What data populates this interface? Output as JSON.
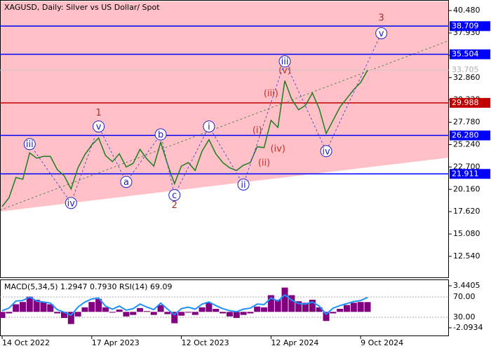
{
  "chart_data": [
    {
      "type": "line",
      "title": "XAGUSD, Daily:  Silver vs US Dollar/ Spot",
      "color": "#1e7d1e",
      "categories": [
        "14 Oct 2022",
        null,
        null,
        null,
        null,
        null,
        null,
        null,
        null,
        null,
        null,
        null,
        null,
        "17 Apr 2023",
        null,
        null,
        null,
        null,
        null,
        null,
        null,
        null,
        null,
        null,
        null,
        null,
        "12 Oct 2023",
        null,
        null,
        null,
        null,
        null,
        null,
        null,
        null,
        null,
        null,
        null,
        null,
        "12 Apr 2024",
        null,
        null,
        null,
        null,
        null,
        null,
        null,
        null,
        null,
        null,
        null,
        null,
        "9 Oct 2024",
        null
      ],
      "values": [
        18.2,
        19.2,
        21.5,
        21.3,
        24.3,
        23.7,
        23.9,
        23.9,
        22.4,
        21.7,
        20.2,
        22.6,
        24.1,
        25.2,
        26.0,
        24.0,
        23.3,
        24.2,
        22.7,
        23.1,
        24.7,
        23.6,
        22.8,
        25.5,
        23.0,
        20.8,
        22.8,
        23.2,
        22.3,
        24.5,
        25.8,
        24.2,
        23.2,
        22.6,
        22.3,
        22.9,
        23.2,
        25.0,
        24.9,
        28.0,
        27.2,
        32.5,
        30.4,
        29.2,
        29.7,
        31.1,
        29.3,
        26.5,
        28.0,
        29.5,
        30.5,
        31.5,
        32.3,
        33.7
      ],
      "ylim": [
        10.23,
        41.52
      ],
      "yticks": [
        {
          "value": 40.48,
          "label": "40.480"
        },
        {
          "value": 37.93,
          "label": "37.930"
        },
        {
          "value": 35.4,
          "label": "35.400"
        },
        {
          "value": 32.86,
          "label": "32.860"
        },
        {
          "value": 30.33,
          "label": "30.330"
        },
        {
          "value": 27.78,
          "label": "27.780"
        },
        {
          "value": 25.24,
          "label": "25.240"
        },
        {
          "value": 22.7,
          "label": "22.700"
        },
        {
          "value": 20.16,
          "label": "20.160"
        },
        {
          "value": 17.62,
          "label": "17.620"
        },
        {
          "value": 15.08,
          "label": "15.080"
        },
        {
          "value": 12.54,
          "label": "12.540"
        }
      ],
      "levels": [
        {
          "value": 38.709,
          "label": "38.709",
          "color": "#0000ff"
        },
        {
          "value": 35.504,
          "label": "35.504",
          "color": "#0000ff"
        },
        {
          "value": 29.988,
          "label": "29.988",
          "color": "#c00000"
        },
        {
          "value": 26.28,
          "label": "26.280",
          "color": "#0000ff"
        },
        {
          "value": 21.911,
          "label": "21.911",
          "color": "#0000ff"
        }
      ],
      "last_price": {
        "value": 33.705,
        "label": "33.705"
      },
      "annotations": [
        {
          "text": "iii",
          "x": 4,
          "y": 25.3,
          "circled": true,
          "color": "#2020c0"
        },
        {
          "text": "iv",
          "x": 10,
          "y": 18.6,
          "circled": true,
          "color": "#2020c0"
        },
        {
          "text": "v",
          "x": 14,
          "y": 27.3,
          "circled": true,
          "color": "#2020c0"
        },
        {
          "text": "1",
          "x": 14,
          "y": 28.9,
          "circled": false,
          "color": "#a0302a"
        },
        {
          "text": "a",
          "x": 18,
          "y": 21.0,
          "circled": true,
          "color": "#2020c0"
        },
        {
          "text": "b",
          "x": 23,
          "y": 26.4,
          "circled": true,
          "color": "#2020c0"
        },
        {
          "text": "c",
          "x": 25,
          "y": 19.5,
          "circled": true,
          "color": "#2020c0"
        },
        {
          "text": "2",
          "x": 25,
          "y": 18.4,
          "circled": false,
          "color": "#a0302a"
        },
        {
          "text": "i",
          "x": 30,
          "y": 27.3,
          "circled": true,
          "color": "#2020c0"
        },
        {
          "text": "ii",
          "x": 35,
          "y": 20.7,
          "circled": true,
          "color": "#2020c0"
        },
        {
          "text": "(i)",
          "x": 37,
          "y": 26.9,
          "circled": false,
          "color": "#c0302a"
        },
        {
          "text": "(ii)",
          "x": 38,
          "y": 23.2,
          "circled": false,
          "color": "#c0302a"
        },
        {
          "text": "(iii)",
          "x": 39,
          "y": 31.1,
          "circled": false,
          "color": "#c0302a"
        },
        {
          "text": "(iv)",
          "x": 40,
          "y": 24.8,
          "circled": false,
          "color": "#c0302a"
        },
        {
          "text": "(v)",
          "x": 41,
          "y": 33.7,
          "circled": false,
          "color": "#c0302a"
        },
        {
          "text": "iii",
          "x": 41,
          "y": 34.7,
          "circled": true,
          "color": "#2020c0"
        },
        {
          "text": "iv",
          "x": 47,
          "y": 24.5,
          "circled": true,
          "color": "#2020c0"
        },
        {
          "text": "v",
          "x": 55,
          "y": 37.9,
          "circled": true,
          "color": "#2020c0"
        },
        {
          "text": "3",
          "x": 55,
          "y": 39.7,
          "circled": false,
          "color": "#a0302a"
        }
      ]
    },
    {
      "type": "macd",
      "title": "MACD(5,34,5) 1.2947 0.7930 RSI(14) 69.09",
      "color": "#800080",
      "rsi_color": "#1e90ff",
      "values": [
        -0.8,
        -0.2,
        1.0,
        1.3,
        2.0,
        1.6,
        1.3,
        1.0,
        -0.2,
        -0.8,
        -1.6,
        -0.6,
        0.6,
        1.3,
        1.7,
        0.6,
        -0.1,
        0.3,
        -0.6,
        -0.4,
        0.5,
        0.1,
        -0.4,
        0.9,
        -0.3,
        -1.5,
        -0.5,
        -0.1,
        -0.4,
        0.6,
        1.2,
        0.4,
        -0.2,
        -0.6,
        -0.8,
        -0.4,
        -0.2,
        0.7,
        0.6,
        2.2,
        1.6,
        3.2,
        2.2,
        1.4,
        1.2,
        1.6,
        0.6,
        -1.2,
        -0.2,
        0.4,
        0.9,
        1.2,
        1.3,
        1.29
      ],
      "rsi": [
        43,
        48,
        62,
        63,
        70,
        62,
        60,
        58,
        45,
        40,
        34,
        50,
        60,
        66,
        68,
        52,
        46,
        52,
        44,
        47,
        56,
        50,
        45,
        58,
        46,
        35,
        47,
        50,
        46,
        56,
        60,
        53,
        47,
        43,
        41,
        46,
        48,
        56,
        55,
        68,
        62,
        74,
        64,
        57,
        56,
        60,
        52,
        36,
        48,
        53,
        57,
        61,
        63,
        69.09
      ],
      "ylim": [
        -3.02,
        4.18
      ],
      "yticks": [
        {
          "value": 3.4405,
          "label": "3.4405"
        },
        {
          "value": -2.0934,
          "label": "-2.0934"
        }
      ],
      "y2lim": [
        -4.5,
        103.1
      ],
      "y2ticks": [
        {
          "value": 70,
          "label": "70.00"
        },
        {
          "value": 30,
          "label": "30.00"
        }
      ]
    }
  ]
}
